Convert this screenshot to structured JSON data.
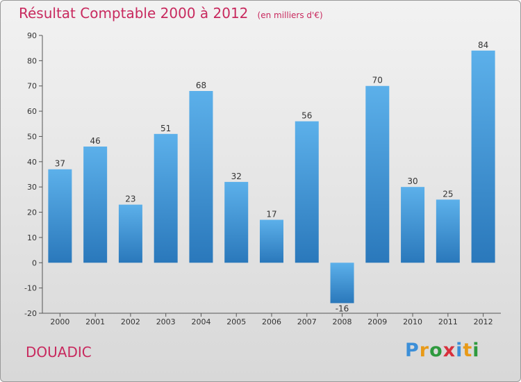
{
  "chart_data": {
    "type": "bar",
    "title": "Résultat Comptable 2000 à 2012",
    "subtitle": "(en milliers d'€)",
    "categories": [
      "2000",
      "2001",
      "2002",
      "2003",
      "2004",
      "2005",
      "2006",
      "2007",
      "2008",
      "2009",
      "2010",
      "2011",
      "2012"
    ],
    "values": [
      37,
      46,
      23,
      51,
      68,
      32,
      17,
      56,
      -16,
      70,
      30,
      25,
      84
    ],
    "value_labels": [
      "37",
      "46",
      "23",
      "51",
      "68",
      "32",
      "17",
      "56",
      "-16",
      "70",
      "30",
      "25",
      "84"
    ],
    "ylim": [
      -20,
      90
    ],
    "yticks": [
      -20,
      -10,
      0,
      10,
      20,
      30,
      40,
      50,
      60,
      70,
      80,
      90
    ],
    "xlabel": "",
    "ylabel": "",
    "grid": false
  },
  "place": "DOUADIC",
  "logo": {
    "letters": [
      "P",
      "r",
      "o",
      "x",
      "i",
      "t",
      "i"
    ],
    "colors": [
      "#3c8fd8",
      "#e89a18",
      "#2e9a3e",
      "#d8303c",
      "#3c8fd8",
      "#e89a18",
      "#2e9a3e"
    ]
  },
  "colors": {
    "bar_light": "#5cb0ea",
    "bar_dark": "#2a78bb",
    "accent": "#c8295e",
    "axis": "#555555"
  }
}
